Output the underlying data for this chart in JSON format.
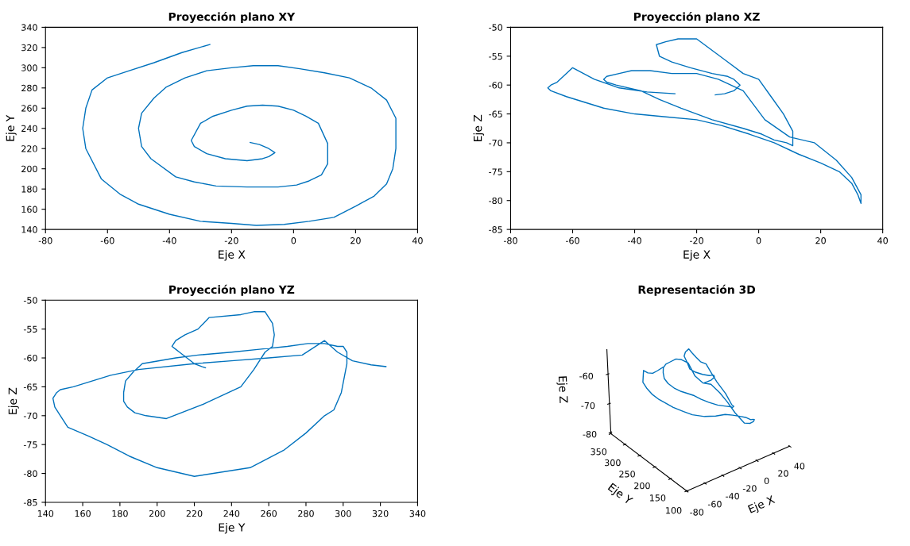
{
  "chart_data": [
    {
      "type": "line",
      "title": "Proyección plano XY",
      "xlabel": "Eje X",
      "ylabel": "Eje Y",
      "xlim": [
        -80,
        40
      ],
      "xticks": [
        -80,
        -60,
        -40,
        -20,
        0,
        20,
        40
      ],
      "ylim": [
        140,
        340
      ],
      "yticks": [
        140,
        160,
        180,
        200,
        220,
        240,
        260,
        280,
        300,
        320,
        340
      ],
      "grid": false,
      "series": [
        {
          "color": "#0072bd",
          "x": [
            -27,
            -36,
            -45,
            -53,
            -60,
            -65,
            -67,
            -68,
            -67,
            -62,
            -56,
            -50,
            -40,
            -30,
            -20,
            -12,
            -3,
            5,
            13,
            20,
            26,
            30,
            32,
            33,
            33,
            30,
            25,
            18,
            10,
            2,
            -5,
            -13,
            -20,
            -28,
            -35,
            -41,
            -45,
            -49,
            -50,
            -49,
            -46,
            -38,
            -32,
            -25,
            -15,
            -5,
            1,
            5,
            9,
            11,
            11,
            8,
            4,
            0,
            -5,
            -10,
            -15,
            -20,
            -26,
            -30,
            -33,
            -32,
            -28,
            -22,
            -15,
            -10,
            -8,
            -6,
            -8,
            -11,
            -14
          ],
          "values": [
            323,
            315,
            305,
            297,
            290,
            278,
            260,
            240,
            220,
            190,
            175,
            165,
            155,
            148,
            146,
            144,
            145,
            148,
            152,
            163,
            173,
            185,
            200,
            220,
            250,
            268,
            280,
            290,
            295,
            299,
            302,
            302,
            300,
            297,
            290,
            281,
            270,
            255,
            240,
            222,
            210,
            192,
            187,
            183,
            182,
            182,
            184,
            188,
            194,
            205,
            225,
            245,
            252,
            258,
            262,
            263,
            262,
            258,
            252,
            245,
            228,
            222,
            215,
            210,
            208,
            210,
            212,
            216,
            220,
            224,
            226
          ]
        }
      ]
    },
    {
      "type": "line",
      "title": "Proyección plano XZ",
      "xlabel": "Eje X",
      "ylabel": "Eje Z",
      "xlim": [
        -80,
        40
      ],
      "xticks": [
        -80,
        -60,
        -40,
        -20,
        0,
        20,
        40
      ],
      "ylim": [
        -85,
        -50
      ],
      "yticks": [
        -85,
        -80,
        -75,
        -70,
        -65,
        -60,
        -55,
        -50
      ],
      "grid": false,
      "series": [
        {
          "color": "#0072bd",
          "x": [
            -27,
            -36,
            -45,
            -53,
            -60,
            -65,
            -67,
            -68,
            -67,
            -62,
            -56,
            -50,
            -40,
            -30,
            -20,
            -12,
            -3,
            5,
            13,
            20,
            26,
            30,
            32,
            33,
            33,
            30,
            25,
            18,
            10,
            2,
            -5,
            -13,
            -20,
            -28,
            -35,
            -41,
            -45,
            -49,
            -50,
            -49,
            -46,
            -38,
            -32,
            -25,
            -15,
            -5,
            1,
            5,
            9,
            11,
            11,
            8,
            4,
            0,
            -5,
            -10,
            -15,
            -20,
            -26,
            -30,
            -33,
            -32,
            -28,
            -22,
            -15,
            -10,
            -8,
            -6,
            -8,
            -11,
            -14
          ],
          "values": [
            -61.5,
            -61.2,
            -60.5,
            -59,
            -57,
            -59.5,
            -60,
            -60.5,
            -61,
            -62,
            -63,
            -64,
            -65,
            -65.5,
            -66,
            -67,
            -68.5,
            -70,
            -72,
            -73.5,
            -75,
            -77,
            -79,
            -80.5,
            -79,
            -76,
            -73,
            -70,
            -69,
            -66,
            -61,
            -59,
            -58,
            -58,
            -57.5,
            -57.5,
            -58,
            -58.5,
            -59,
            -59.5,
            -60,
            -61,
            -62.5,
            -64,
            -66,
            -67.5,
            -68.5,
            -69.5,
            -70,
            -70.5,
            -68,
            -65,
            -62,
            -59,
            -58,
            -56,
            -54,
            -52,
            -52,
            -52.5,
            -53,
            -55,
            -56,
            -57,
            -58,
            -58.5,
            -59,
            -60,
            -61,
            -61.5,
            -61.7
          ]
        }
      ]
    },
    {
      "type": "line",
      "title": "Proyección plano YZ",
      "xlabel": "Eje Y",
      "ylabel": "Eje Z",
      "xlim": [
        140,
        340
      ],
      "xticks": [
        140,
        160,
        180,
        200,
        220,
        240,
        260,
        280,
        300,
        320,
        340
      ],
      "ylim": [
        -85,
        -50
      ],
      "yticks": [
        -85,
        -80,
        -75,
        -70,
        -65,
        -60,
        -55,
        -50
      ],
      "grid": false,
      "series": [
        {
          "color": "#0072bd",
          "x": [
            323,
            315,
            305,
            297,
            290,
            278,
            260,
            240,
            220,
            190,
            175,
            165,
            155,
            148,
            146,
            144,
            145,
            148,
            152,
            163,
            173,
            185,
            200,
            220,
            250,
            268,
            280,
            290,
            295,
            299,
            302,
            302,
            300,
            297,
            290,
            281,
            270,
            255,
            240,
            222,
            210,
            192,
            187,
            183,
            182,
            182,
            184,
            188,
            194,
            205,
            225,
            245,
            252,
            258,
            262,
            263,
            262,
            258,
            252,
            245,
            228,
            222,
            215,
            210,
            208,
            210,
            212,
            216,
            220,
            224,
            226
          ],
          "values": [
            -61.5,
            -61.2,
            -60.5,
            -59,
            -57,
            -59.5,
            -60,
            -60.5,
            -61,
            -62,
            -63,
            -64,
            -65,
            -65.5,
            -66,
            -67,
            -68.5,
            -70,
            -72,
            -73.5,
            -75,
            -77,
            -79,
            -80.5,
            -79,
            -76,
            -73,
            -70,
            -69,
            -66,
            -61,
            -59,
            -58,
            -58,
            -57.5,
            -57.5,
            -58,
            -58.5,
            -59,
            -59.5,
            -60,
            -61,
            -62.5,
            -64,
            -66,
            -67.5,
            -68.5,
            -69.5,
            -70,
            -70.5,
            -68,
            -65,
            -62,
            -59,
            -58,
            -56,
            -54,
            -52,
            -52,
            -52.5,
            -53,
            -55,
            -56,
            -57,
            -58,
            -58.5,
            -59,
            -60,
            -61,
            -61.5,
            -61.7
          ]
        }
      ]
    },
    {
      "type": "other",
      "title": "Representación 3D",
      "xlabel": "Eje X",
      "ylabel": "Eje Y",
      "annotations": [
        "Eje Z",
        "100",
        "150",
        "200",
        "250",
        "300",
        "350",
        "-80",
        "-70",
        "-60",
        "-80",
        "-60",
        "-40",
        "-20",
        "0",
        "20",
        "40"
      ]
    }
  ]
}
